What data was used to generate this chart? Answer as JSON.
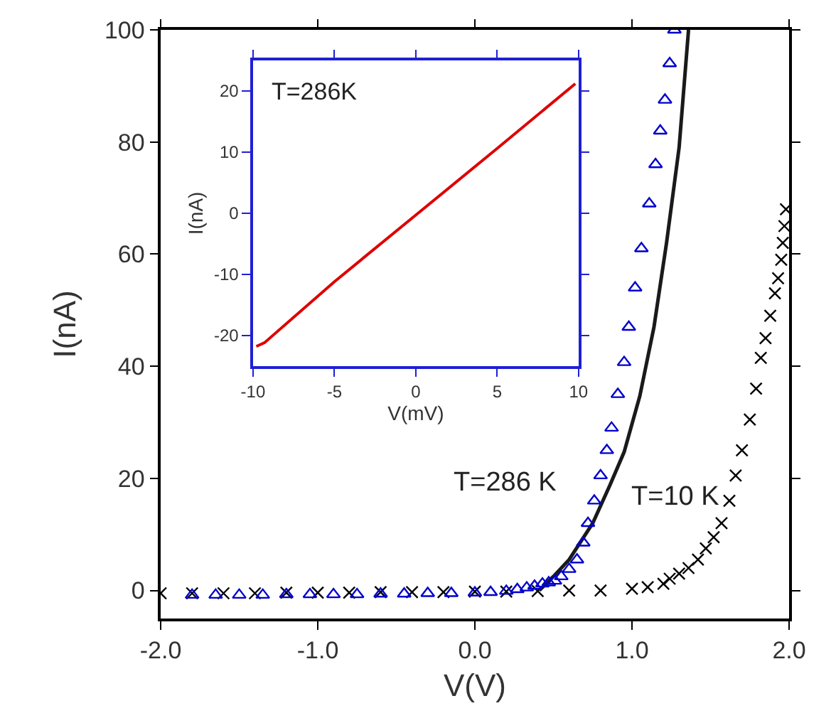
{
  "chart_data": [
    {
      "type": "scatter",
      "xlabel": "V(V)",
      "ylabel": "I(nA)",
      "xlim": [
        -2,
        2
      ],
      "ylim": [
        -5,
        100
      ],
      "xticks": [
        {
          "value": -2,
          "label": "-2.0"
        },
        {
          "value": -1,
          "label": "-1.0"
        },
        {
          "value": 0,
          "label": "0.0"
        },
        {
          "value": 1,
          "label": "1.0"
        },
        {
          "value": 2,
          "label": "2.0"
        }
      ],
      "yticks": [
        0,
        20,
        40,
        60,
        80,
        100
      ],
      "annotations": [
        "T=286 K",
        "T=10 K"
      ],
      "series": [
        {
          "marker": "cross",
          "color": "#000000",
          "x": [
            -2.0,
            -1.8,
            -1.6,
            -1.4,
            -1.2,
            -1.0,
            -0.8,
            -0.6,
            -0.4,
            -0.2,
            0.0,
            0.2,
            0.4,
            0.6,
            0.8,
            1.0,
            1.1,
            1.2,
            1.24,
            1.3,
            1.36,
            1.42,
            1.47,
            1.52,
            1.57,
            1.62,
            1.66,
            1.7,
            1.75,
            1.79,
            1.82,
            1.85,
            1.88,
            1.91,
            1.93,
            1.95,
            1.96,
            1.97,
            1.98
          ],
          "values": [
            -0.5,
            -0.5,
            -0.5,
            -0.5,
            -0.4,
            -0.4,
            -0.4,
            -0.3,
            -0.3,
            -0.3,
            -0.2,
            -0.2,
            -0.1,
            0,
            0,
            0.3,
            0.6,
            1.2,
            2.1,
            3,
            4,
            5.5,
            7.5,
            9.5,
            12,
            16,
            20.5,
            25,
            30.5,
            36,
            41.5,
            45,
            49,
            53,
            55.7,
            59,
            62,
            65,
            68
          ]
        },
        {
          "type": "line",
          "marker": "none",
          "color": "#1a1a1a",
          "x": [
            0.41,
            0.5,
            0.6,
            0.75,
            0.86,
            0.95,
            1.05,
            1.14,
            1.22,
            1.3,
            1.36
          ],
          "values": [
            0,
            2.5,
            5.5,
            12,
            18.8,
            24.7,
            34.7,
            47,
            62,
            79,
            100
          ]
        },
        {
          "marker": "triangle",
          "color": "#0000cc",
          "x": [
            -1.8,
            -1.65,
            -1.5,
            -1.35,
            -1.2,
            -1.05,
            -0.9,
            -0.75,
            -0.6,
            -0.45,
            -0.3,
            -0.15,
            0.0,
            0.1,
            0.2,
            0.27,
            0.33,
            0.38,
            0.43,
            0.47,
            0.51,
            0.55,
            0.6,
            0.65,
            0.69,
            0.72,
            0.76,
            0.8,
            0.84,
            0.87,
            0.91,
            0.95,
            0.98,
            1.02,
            1.06,
            1.11,
            1.15,
            1.18,
            1.21,
            1.24,
            1.27
          ],
          "values": [
            -0.8,
            -0.8,
            -0.8,
            -0.8,
            -0.7,
            -0.7,
            -0.7,
            -0.7,
            -0.6,
            -0.6,
            -0.5,
            -0.5,
            -0.4,
            -0.3,
            -0.1,
            0.2,
            0.5,
            0.8,
            1.2,
            1.4,
            1.7,
            2.5,
            3.8,
            5.5,
            8.5,
            12,
            16,
            20.5,
            25,
            29,
            35,
            40.7,
            47,
            54,
            61,
            69,
            76,
            82,
            87.5,
            94,
            100
          ]
        }
      ]
    },
    {
      "type": "line",
      "xlabel": "V(mV)",
      "ylabel": "I(nA)",
      "xlim": [
        -10,
        10
      ],
      "ylim": [
        -25,
        25
      ],
      "xticks": [
        -10,
        -5,
        0,
        5,
        10
      ],
      "yticks": [
        -20,
        -10,
        0,
        10,
        20
      ],
      "annotations": [
        "T=286K"
      ],
      "series": [
        {
          "marker": "none",
          "color": "#dd0000",
          "x": [
            -9.8,
            -9.3,
            -5,
            0,
            5,
            9.8
          ],
          "values": [
            -21.8,
            -21.2,
            -11.2,
            -0.3,
            10.6,
            21.2
          ]
        }
      ]
    }
  ]
}
